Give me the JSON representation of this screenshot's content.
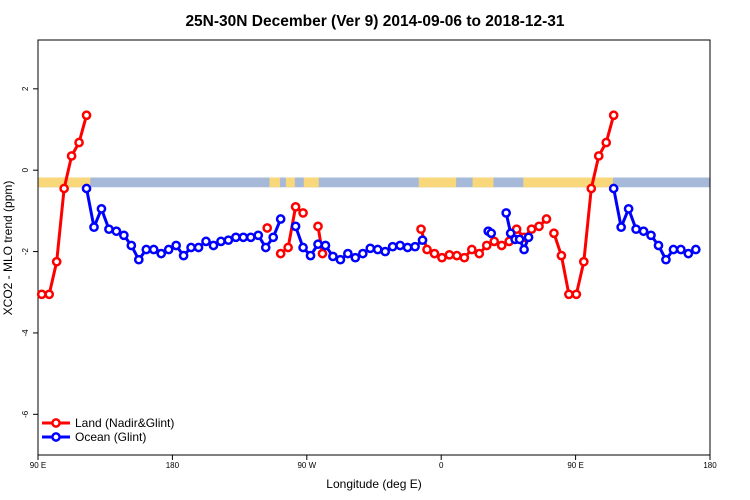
{
  "chart_data": {
    "type": "line",
    "title": "25N-30N December (Ver 9)   2014-09-06 to 2018-12-31",
    "xlabel": "Longitude (deg E)",
    "ylabel": "XCO2 - MLO trend (ppm)",
    "xlim": [
      90,
      540
    ],
    "ylim": [
      -7.0,
      3.2
    ],
    "xticks": [
      {
        "value": 90,
        "label": "90 E"
      },
      {
        "value": 180,
        "label": "180"
      },
      {
        "value": 270,
        "label": "90 W"
      },
      {
        "value": 360,
        "label": "0"
      },
      {
        "value": 450,
        "label": "90 E"
      },
      {
        "value": 540,
        "label": "180"
      }
    ],
    "yticks": [
      {
        "value": 2,
        "label": "2"
      },
      {
        "value": 0,
        "label": "0"
      },
      {
        "value": -2,
        "label": "-2"
      },
      {
        "value": -4,
        "label": "-4"
      },
      {
        "value": -6,
        "label": "-6"
      }
    ],
    "land_ocean_strip": {
      "y_range": [
        -0.42,
        -0.18
      ],
      "ocean_color": "#a7b9d8",
      "land_color": "#f9d77b",
      "land_segments": [
        [
          90,
          125
        ],
        [
          245,
          252
        ],
        [
          256,
          262
        ],
        [
          268,
          278
        ],
        [
          345,
          370
        ],
        [
          381,
          395
        ],
        [
          415,
          475
        ]
      ]
    },
    "series": [
      {
        "name": "Land (Nadir&Glint)",
        "color": "#ff0000",
        "segments": [
          {
            "x": [
              92.5,
              97.5,
              102.5,
              107.5,
              112.5,
              117.5,
              122.5
            ],
            "y": [
              -3.05,
              -3.05,
              -2.25,
              -0.45,
              0.35,
              0.68,
              1.35
            ]
          },
          {
            "x": [
              243.5
            ],
            "y": [
              -1.42
            ]
          },
          {
            "x": [
              252.5,
              257.5,
              262.5,
              267.5
            ],
            "y": [
              -2.05,
              -1.9,
              -0.9,
              -1.05
            ]
          },
          {
            "x": [
              277.5,
              280.5
            ],
            "y": [
              -1.38,
              -2.05
            ]
          },
          {
            "x": [
              346.5,
              350.5,
              355.5,
              360.5,
              365.5,
              370.5,
              375.5,
              380.5,
              385.5,
              390.5,
              395.5,
              400.5,
              405.5,
              410.5,
              415.5,
              420.5,
              425.5,
              430.5
            ],
            "y": [
              -1.45,
              -1.95,
              -2.05,
              -2.15,
              -2.08,
              -2.1,
              -2.15,
              -1.95,
              -2.05,
              -1.85,
              -1.75,
              -1.85,
              -1.75,
              -1.45,
              -1.65,
              -1.45,
              -1.38,
              -1.2
            ]
          },
          {
            "x": [
              435.5,
              440.5,
              445.5,
              450.5,
              455.5,
              460.5,
              465.5,
              470.5,
              475.5,
              480.5
            ],
            "y": [
              -1.55,
              -2.1,
              -3.05,
              -3.05,
              -2.25,
              -0.45,
              0.35,
              0.68,
              1.35,
              null
            ]
          }
        ]
      },
      {
        "name": "Ocean (Glint)",
        "color": "#0000ff",
        "segments": [
          {
            "x": [
              122.5,
              127.5,
              132.5,
              137.5,
              142.5,
              147.5,
              152.5,
              157.5,
              162.5,
              167.5,
              172.5,
              177.5,
              182.5,
              187.5,
              192.5,
              197.5,
              202.5,
              207.5,
              212.5,
              217.5,
              222.5,
              227.5,
              232.5,
              237.5,
              242.5,
              247.5,
              252.5
            ],
            "y": [
              -0.45,
              -1.4,
              -0.95,
              -1.45,
              -1.5,
              -1.6,
              -1.85,
              -2.2,
              -1.95,
              -1.95,
              -2.05,
              -1.95,
              -1.85,
              -2.1,
              -1.9,
              -1.9,
              -1.75,
              -1.85,
              -1.75,
              -1.72,
              -1.65,
              -1.65,
              -1.65,
              -1.6,
              -1.9,
              -1.65,
              -1.2
            ]
          },
          {
            "x": [
              262.5,
              267.5,
              272.5,
              277.5,
              282.5,
              287.5,
              292.5,
              297.5,
              302.5,
              307.5,
              312.5,
              317.5,
              322.5,
              327.5,
              332.5,
              337.5,
              342.5,
              347.5
            ],
            "y": [
              -1.38,
              -1.9,
              -2.1,
              -1.82,
              -1.85,
              -2.12,
              -2.2,
              -2.05,
              -2.15,
              -2.05,
              -1.92,
              -1.95,
              -2.0,
              -1.88,
              -1.85,
              -1.9,
              -1.88,
              -1.72
            ]
          },
          {
            "x": [
              391.5,
              393.5
            ],
            "y": [
              -1.5,
              -1.55
            ]
          },
          {
            "x": [
              403.5,
              406.5,
              409.5,
              412.5,
              415.5,
              418.5
            ],
            "y": [
              -1.05,
              -1.55,
              -1.7,
              -1.7,
              -1.95,
              -1.65
            ]
          },
          {
            "x": [
              475.5,
              480.5,
              485.5,
              490.5,
              495.5,
              500.5,
              505.5,
              510.5,
              515.5,
              520.5,
              525.5,
              530.5,
              535.5,
              540.5
            ],
            "y": [
              -0.45,
              -1.4,
              -0.95,
              -1.45,
              -1.5,
              -1.6,
              -1.85,
              -2.2,
              -1.95,
              -1.95,
              -2.05,
              -1.95,
              null,
              null
            ]
          }
        ]
      }
    ],
    "legend": {
      "placement": "bottom-left",
      "entries": [
        "Land (Nadir&Glint)",
        "Ocean (Glint)"
      ]
    }
  }
}
